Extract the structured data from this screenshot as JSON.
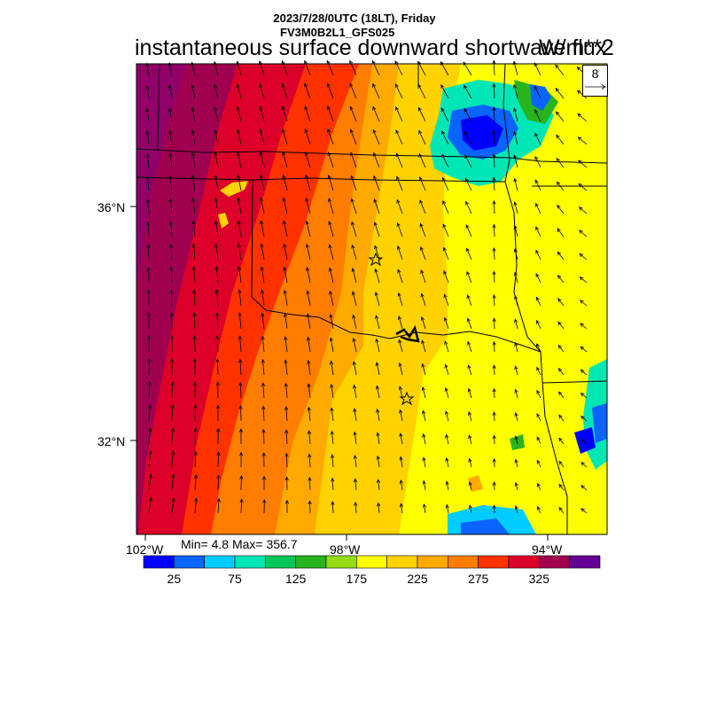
{
  "header": {
    "date_line": "2023/7/28/0UTC (18LT), Friday",
    "model_line": "FV3M0B2L1_GFS025",
    "variable_title": "instantaneous surface downward shortwave flux",
    "units": "W/m**2"
  },
  "map": {
    "lat_labels": [
      "36°N",
      "32°N"
    ],
    "lon_labels": [
      "102°W",
      "98°W",
      "94°W"
    ],
    "min_max": "Min= 4.8 Max= 356.7",
    "reference_vector": "8",
    "station_markers": [
      "star",
      "star"
    ]
  },
  "colorbar": {
    "colors": [
      "#0000ff",
      "#0a64ff",
      "#00ccff",
      "#00e6b4",
      "#00c85a",
      "#28b41e",
      "#96dc14",
      "#ffff00",
      "#ffd200",
      "#ffaa00",
      "#ff7d00",
      "#ff3200",
      "#dc0028",
      "#a00050",
      "#640096"
    ],
    "tick_labels": [
      "25",
      "75",
      "125",
      "175",
      "225",
      "275",
      "325"
    ]
  }
}
